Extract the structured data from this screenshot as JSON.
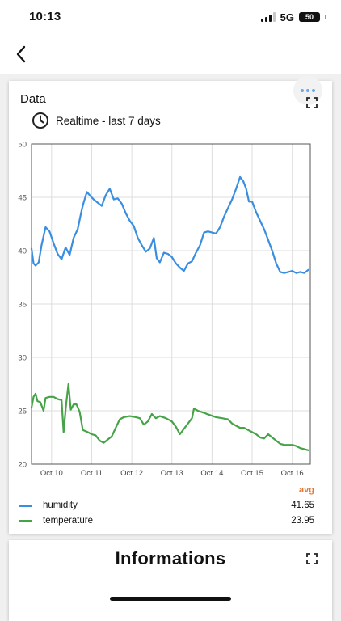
{
  "status_bar": {
    "time": "10:13",
    "network": "5G",
    "battery": "50"
  },
  "nav": {
    "back_icon": "chevron-left-icon"
  },
  "data_card": {
    "title": "Data",
    "subtitle": "Realtime - last 7 days",
    "subtitle_icon": "clock-icon",
    "more_icon": "more-dots-icon",
    "expand_icon": "expand-icon",
    "avg_label": "avg",
    "legend": [
      {
        "name": "humidity",
        "avg": "41.65",
        "color": "#3a8ee0"
      },
      {
        "name": "temperature",
        "avg": "23.95",
        "color": "#47a347"
      }
    ]
  },
  "info_card": {
    "title": "Informations",
    "expand_icon": "expand-icon"
  },
  "chart_data": {
    "type": "line",
    "x_labels": [
      "Oct 10",
      "Oct 11",
      "Oct 12",
      "Oct 13",
      "Oct 14",
      "Oct 15",
      "Oct 16"
    ],
    "x_range": [
      9.5,
      16.45
    ],
    "y_ticks": [
      20,
      25,
      30,
      35,
      40,
      45,
      50
    ],
    "ylim": [
      20,
      50
    ],
    "grid": true,
    "series": [
      {
        "name": "humidity",
        "color": "#3a8ee0",
        "points": [
          [
            9.5,
            40.2
          ],
          [
            9.55,
            38.8
          ],
          [
            9.6,
            38.6
          ],
          [
            9.68,
            38.9
          ],
          [
            9.75,
            40.5
          ],
          [
            9.85,
            42.2
          ],
          [
            9.95,
            41.8
          ],
          [
            10.05,
            40.7
          ],
          [
            10.15,
            39.7
          ],
          [
            10.25,
            39.2
          ],
          [
            10.35,
            40.3
          ],
          [
            10.45,
            39.6
          ],
          [
            10.55,
            41.2
          ],
          [
            10.65,
            42.0
          ],
          [
            10.75,
            43.8
          ],
          [
            10.8,
            44.5
          ],
          [
            10.88,
            45.5
          ],
          [
            10.95,
            45.2
          ],
          [
            11.05,
            44.8
          ],
          [
            11.15,
            44.5
          ],
          [
            11.25,
            44.2
          ],
          [
            11.35,
            45.2
          ],
          [
            11.45,
            45.8
          ],
          [
            11.55,
            44.8
          ],
          [
            11.65,
            44.9
          ],
          [
            11.75,
            44.4
          ],
          [
            11.85,
            43.5
          ],
          [
            11.95,
            42.8
          ],
          [
            12.05,
            42.3
          ],
          [
            12.15,
            41.2
          ],
          [
            12.25,
            40.5
          ],
          [
            12.35,
            39.9
          ],
          [
            12.45,
            40.2
          ],
          [
            12.55,
            41.2
          ],
          [
            12.62,
            39.3
          ],
          [
            12.7,
            38.9
          ],
          [
            12.8,
            39.8
          ],
          [
            12.9,
            39.7
          ],
          [
            13.0,
            39.4
          ],
          [
            13.1,
            38.8
          ],
          [
            13.2,
            38.4
          ],
          [
            13.3,
            38.1
          ],
          [
            13.4,
            38.8
          ],
          [
            13.5,
            39.0
          ],
          [
            13.6,
            39.8
          ],
          [
            13.7,
            40.5
          ],
          [
            13.8,
            41.7
          ],
          [
            13.9,
            41.8
          ],
          [
            14.0,
            41.7
          ],
          [
            14.1,
            41.6
          ],
          [
            14.2,
            42.2
          ],
          [
            14.3,
            43.2
          ],
          [
            14.4,
            44.0
          ],
          [
            14.5,
            44.8
          ],
          [
            14.6,
            45.8
          ],
          [
            14.7,
            46.9
          ],
          [
            14.78,
            46.5
          ],
          [
            14.85,
            45.8
          ],
          [
            14.92,
            44.6
          ],
          [
            15.0,
            44.6
          ],
          [
            15.1,
            43.6
          ],
          [
            15.2,
            42.8
          ],
          [
            15.3,
            42.0
          ],
          [
            15.4,
            41.0
          ],
          [
            15.5,
            40.0
          ],
          [
            15.6,
            38.8
          ],
          [
            15.7,
            38.0
          ],
          [
            15.8,
            37.9
          ],
          [
            15.9,
            38.0
          ],
          [
            16.0,
            38.1
          ],
          [
            16.1,
            37.9
          ],
          [
            16.2,
            38.0
          ],
          [
            16.3,
            37.9
          ],
          [
            16.4,
            38.2
          ]
        ]
      },
      {
        "name": "temperature",
        "color": "#47a347",
        "points": [
          [
            9.5,
            25.3
          ],
          [
            9.55,
            26.3
          ],
          [
            9.6,
            26.6
          ],
          [
            9.65,
            25.9
          ],
          [
            9.72,
            25.8
          ],
          [
            9.8,
            25.0
          ],
          [
            9.85,
            26.2
          ],
          [
            9.95,
            26.3
          ],
          [
            10.05,
            26.3
          ],
          [
            10.15,
            26.1
          ],
          [
            10.25,
            26.0
          ],
          [
            10.3,
            23.0
          ],
          [
            10.36,
            25.5
          ],
          [
            10.42,
            27.5
          ],
          [
            10.48,
            25.1
          ],
          [
            10.55,
            25.6
          ],
          [
            10.62,
            25.6
          ],
          [
            10.7,
            24.9
          ],
          [
            10.78,
            23.2
          ],
          [
            10.9,
            23.0
          ],
          [
            11.0,
            22.8
          ],
          [
            11.1,
            22.7
          ],
          [
            11.2,
            22.2
          ],
          [
            11.3,
            22.0
          ],
          [
            11.4,
            22.3
          ],
          [
            11.5,
            22.6
          ],
          [
            11.6,
            23.4
          ],
          [
            11.7,
            24.2
          ],
          [
            11.8,
            24.4
          ],
          [
            11.95,
            24.5
          ],
          [
            12.1,
            24.4
          ],
          [
            12.2,
            24.3
          ],
          [
            12.3,
            23.7
          ],
          [
            12.4,
            24.0
          ],
          [
            12.5,
            24.7
          ],
          [
            12.6,
            24.3
          ],
          [
            12.7,
            24.5
          ],
          [
            12.85,
            24.3
          ],
          [
            13.0,
            24.0
          ],
          [
            13.1,
            23.5
          ],
          [
            13.2,
            22.8
          ],
          [
            13.3,
            23.3
          ],
          [
            13.4,
            23.8
          ],
          [
            13.5,
            24.3
          ],
          [
            13.55,
            25.2
          ],
          [
            13.65,
            25.0
          ],
          [
            13.8,
            24.8
          ],
          [
            13.95,
            24.6
          ],
          [
            14.1,
            24.4
          ],
          [
            14.25,
            24.3
          ],
          [
            14.4,
            24.2
          ],
          [
            14.5,
            23.8
          ],
          [
            14.6,
            23.6
          ],
          [
            14.7,
            23.4
          ],
          [
            14.8,
            23.4
          ],
          [
            14.9,
            23.2
          ],
          [
            15.0,
            23.0
          ],
          [
            15.1,
            22.8
          ],
          [
            15.2,
            22.5
          ],
          [
            15.3,
            22.4
          ],
          [
            15.4,
            22.8
          ],
          [
            15.5,
            22.5
          ],
          [
            15.6,
            22.2
          ],
          [
            15.7,
            21.9
          ],
          [
            15.8,
            21.8
          ],
          [
            15.9,
            21.8
          ],
          [
            16.0,
            21.8
          ],
          [
            16.1,
            21.7
          ],
          [
            16.2,
            21.5
          ],
          [
            16.3,
            21.4
          ],
          [
            16.4,
            21.3
          ]
        ]
      }
    ]
  }
}
